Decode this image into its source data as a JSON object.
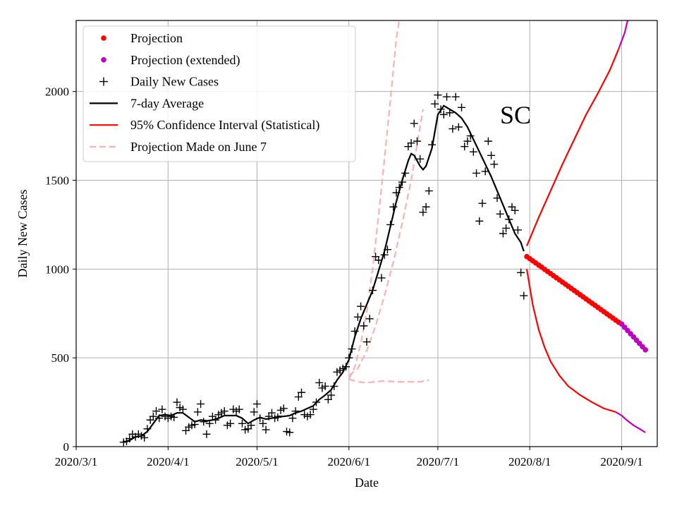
{
  "chart_data": {
    "type": "line",
    "title": "",
    "annotation": "SC",
    "xlabel": "Date",
    "ylabel": "Daily New Cases",
    "xlim": [
      0,
      196
    ],
    "ylim": [
      0,
      2400
    ],
    "grid": true,
    "legend_position": "top-left",
    "x_ticks": [
      {
        "day": 0,
        "label": "2020/3/1"
      },
      {
        "day": 31,
        "label": "2020/4/1"
      },
      {
        "day": 61,
        "label": "2020/5/1"
      },
      {
        "day": 92,
        "label": "2020/6/1"
      },
      {
        "day": 122,
        "label": "2020/7/1"
      },
      {
        "day": 153,
        "label": "2020/8/1"
      },
      {
        "day": 184,
        "label": "2020/9/1"
      }
    ],
    "y_ticks": [
      0,
      500,
      1000,
      1500,
      2000
    ],
    "legend": [
      {
        "label": "Projection",
        "kind": "dot",
        "color": "#ff0000"
      },
      {
        "label": "Projection (extended)",
        "kind": "dot",
        "color": "#bf00bf"
      },
      {
        "label": "Daily New Cases",
        "kind": "plus",
        "color": "#000000"
      },
      {
        "label": "7-day Average",
        "kind": "line",
        "color": "#000000"
      },
      {
        "label": "95% Confidence Interval (Statistical)",
        "kind": "line",
        "color": "#ff0000"
      },
      {
        "label": "Projection Made on June 7",
        "kind": "dash",
        "color": "#f4b4b4"
      }
    ],
    "daily_new_cases": [
      [
        16,
        25
      ],
      [
        17,
        30
      ],
      [
        18,
        45
      ],
      [
        19,
        70
      ],
      [
        20,
        55
      ],
      [
        21,
        70
      ],
      [
        22,
        60
      ],
      [
        23,
        50
      ],
      [
        24,
        100
      ],
      [
        25,
        150
      ],
      [
        26,
        170
      ],
      [
        27,
        200
      ],
      [
        28,
        160
      ],
      [
        29,
        210
      ],
      [
        30,
        170
      ],
      [
        31,
        160
      ],
      [
        32,
        170
      ],
      [
        33,
        165
      ],
      [
        34,
        250
      ],
      [
        35,
        220
      ],
      [
        36,
        210
      ],
      [
        37,
        90
      ],
      [
        38,
        110
      ],
      [
        39,
        120
      ],
      [
        40,
        125
      ],
      [
        41,
        195
      ],
      [
        42,
        240
      ],
      [
        43,
        140
      ],
      [
        44,
        70
      ],
      [
        45,
        130
      ],
      [
        46,
        170
      ],
      [
        47,
        150
      ],
      [
        48,
        180
      ],
      [
        49,
        190
      ],
      [
        50,
        200
      ],
      [
        51,
        120
      ],
      [
        52,
        130
      ],
      [
        53,
        210
      ],
      [
        54,
        200
      ],
      [
        55,
        210
      ],
      [
        56,
        130
      ],
      [
        57,
        95
      ],
      [
        58,
        100
      ],
      [
        59,
        120
      ],
      [
        60,
        195
      ],
      [
        61,
        240
      ],
      [
        62,
        160
      ],
      [
        63,
        130
      ],
      [
        64,
        95
      ],
      [
        65,
        170
      ],
      [
        66,
        190
      ],
      [
        67,
        160
      ],
      [
        68,
        165
      ],
      [
        69,
        205
      ],
      [
        70,
        215
      ],
      [
        71,
        85
      ],
      [
        72,
        80
      ],
      [
        73,
        160
      ],
      [
        74,
        200
      ],
      [
        75,
        280
      ],
      [
        76,
        305
      ],
      [
        77,
        180
      ],
      [
        78,
        170
      ],
      [
        79,
        180
      ],
      [
        80,
        210
      ],
      [
        81,
        250
      ],
      [
        82,
        360
      ],
      [
        83,
        330
      ],
      [
        84,
        340
      ],
      [
        85,
        265
      ],
      [
        86,
        290
      ],
      [
        87,
        340
      ],
      [
        88,
        420
      ],
      [
        89,
        430
      ],
      [
        90,
        440
      ],
      [
        91,
        450
      ],
      [
        92,
        500
      ],
      [
        93,
        550
      ],
      [
        94,
        650
      ],
      [
        95,
        730
      ],
      [
        96,
        790
      ],
      [
        97,
        680
      ],
      [
        98,
        590
      ],
      [
        99,
        720
      ],
      [
        100,
        880
      ],
      [
        101,
        1070
      ],
      [
        102,
        1050
      ],
      [
        103,
        950
      ],
      [
        104,
        1080
      ],
      [
        105,
        1110
      ],
      [
        106,
        1250
      ],
      [
        107,
        1350
      ],
      [
        108,
        1430
      ],
      [
        109,
        1460
      ],
      [
        110,
        1490
      ],
      [
        111,
        1540
      ],
      [
        112,
        1690
      ],
      [
        113,
        1710
      ],
      [
        114,
        1820
      ],
      [
        115,
        1720
      ],
      [
        116,
        1620
      ],
      [
        117,
        1320
      ],
      [
        118,
        1350
      ],
      [
        119,
        1440
      ],
      [
        120,
        1700
      ],
      [
        121,
        1930
      ],
      [
        122,
        1980
      ],
      [
        123,
        1900
      ],
      [
        124,
        1870
      ],
      [
        125,
        1970
      ],
      [
        126,
        1880
      ],
      [
        127,
        1790
      ],
      [
        128,
        1970
      ],
      [
        129,
        1800
      ],
      [
        130,
        1910
      ],
      [
        131,
        1690
      ],
      [
        132,
        1720
      ],
      [
        133,
        1750
      ],
      [
        134,
        1660
      ],
      [
        135,
        1540
      ],
      [
        136,
        1270
      ],
      [
        137,
        1370
      ],
      [
        138,
        1550
      ],
      [
        139,
        1720
      ],
      [
        140,
        1640
      ],
      [
        141,
        1590
      ],
      [
        142,
        1400
      ],
      [
        143,
        1310
      ],
      [
        144,
        1200
      ],
      [
        145,
        1230
      ],
      [
        146,
        1280
      ],
      [
        147,
        1350
      ],
      [
        148,
        1330
      ],
      [
        149,
        1220
      ],
      [
        150,
        980
      ],
      [
        151,
        850
      ]
    ],
    "seven_day_average": [
      [
        16,
        25
      ],
      [
        18,
        35
      ],
      [
        20,
        55
      ],
      [
        22,
        60
      ],
      [
        24,
        85
      ],
      [
        26,
        130
      ],
      [
        28,
        175
      ],
      [
        30,
        180
      ],
      [
        32,
        175
      ],
      [
        34,
        190
      ],
      [
        36,
        190
      ],
      [
        38,
        165
      ],
      [
        40,
        140
      ],
      [
        42,
        150
      ],
      [
        44,
        145
      ],
      [
        46,
        150
      ],
      [
        48,
        160
      ],
      [
        50,
        175
      ],
      [
        52,
        175
      ],
      [
        54,
        175
      ],
      [
        56,
        160
      ],
      [
        58,
        130
      ],
      [
        60,
        150
      ],
      [
        62,
        165
      ],
      [
        64,
        155
      ],
      [
        66,
        160
      ],
      [
        68,
        170
      ],
      [
        70,
        170
      ],
      [
        72,
        175
      ],
      [
        74,
        190
      ],
      [
        76,
        200
      ],
      [
        78,
        215
      ],
      [
        80,
        230
      ],
      [
        82,
        265
      ],
      [
        84,
        290
      ],
      [
        86,
        320
      ],
      [
        88,
        375
      ],
      [
        90,
        420
      ],
      [
        92,
        490
      ],
      [
        94,
        620
      ],
      [
        96,
        720
      ],
      [
        98,
        800
      ],
      [
        100,
        880
      ],
      [
        102,
        990
      ],
      [
        104,
        1100
      ],
      [
        106,
        1240
      ],
      [
        108,
        1380
      ],
      [
        110,
        1500
      ],
      [
        112,
        1610
      ],
      [
        113,
        1650
      ],
      [
        114,
        1640
      ],
      [
        116,
        1580
      ],
      [
        117,
        1560
      ],
      [
        118,
        1580
      ],
      [
        120,
        1680
      ],
      [
        122,
        1870
      ],
      [
        124,
        1920
      ],
      [
        126,
        1900
      ],
      [
        128,
        1880
      ],
      [
        130,
        1850
      ],
      [
        132,
        1800
      ],
      [
        134,
        1730
      ],
      [
        136,
        1660
      ],
      [
        138,
        1590
      ],
      [
        140,
        1520
      ],
      [
        142,
        1440
      ],
      [
        144,
        1360
      ],
      [
        146,
        1280
      ],
      [
        148,
        1200
      ],
      [
        150,
        1150
      ],
      [
        151,
        1100
      ]
    ],
    "projection": {
      "start_day": 152,
      "end_day": 183,
      "start_value": 1070,
      "end_value": 700
    },
    "projection_extended": {
      "start_day": 184,
      "end_day": 192,
      "start_value": 690,
      "end_value": 545
    },
    "confidence_interval_upper": [
      [
        152,
        1130
      ],
      [
        156,
        1290
      ],
      [
        160,
        1440
      ],
      [
        164,
        1590
      ],
      [
        168,
        1730
      ],
      [
        172,
        1870
      ],
      [
        176,
        1990
      ],
      [
        180,
        2120
      ],
      [
        183,
        2240
      ]
    ],
    "confidence_interval_lower": [
      [
        152,
        1000
      ],
      [
        154,
        800
      ],
      [
        156,
        660
      ],
      [
        158,
        560
      ],
      [
        160,
        480
      ],
      [
        163,
        400
      ],
      [
        166,
        340
      ],
      [
        170,
        290
      ],
      [
        174,
        250
      ],
      [
        178,
        215
      ],
      [
        182,
        195
      ]
    ],
    "ci_extended_upper": [
      [
        183,
        2240
      ],
      [
        185,
        2330
      ],
      [
        186,
        2400
      ]
    ],
    "ci_extended_lower": [
      [
        182,
        195
      ],
      [
        184,
        175
      ],
      [
        186,
        145
      ],
      [
        188,
        120
      ],
      [
        190,
        100
      ],
      [
        192,
        80
      ]
    ],
    "june7_projection_upper": [
      [
        92,
        380
      ],
      [
        94,
        450
      ],
      [
        96,
        580
      ],
      [
        98,
        760
      ],
      [
        100,
        1000
      ],
      [
        102,
        1300
      ],
      [
        104,
        1620
      ],
      [
        106,
        1950
      ],
      [
        108,
        2300
      ],
      [
        109,
        2400
      ]
    ],
    "june7_projection_mid": [
      [
        92,
        400
      ],
      [
        95,
        440
      ],
      [
        98,
        540
      ],
      [
        101,
        680
      ],
      [
        104,
        850
      ],
      [
        107,
        1040
      ],
      [
        110,
        1260
      ],
      [
        113,
        1500
      ],
      [
        115,
        1700
      ],
      [
        117,
        1900
      ]
    ],
    "june7_projection_lower": [
      [
        92,
        380
      ],
      [
        95,
        365
      ],
      [
        98,
        360
      ],
      [
        101,
        365
      ],
      [
        104,
        370
      ],
      [
        108,
        365
      ],
      [
        112,
        365
      ],
      [
        116,
        365
      ],
      [
        119,
        375
      ]
    ]
  }
}
